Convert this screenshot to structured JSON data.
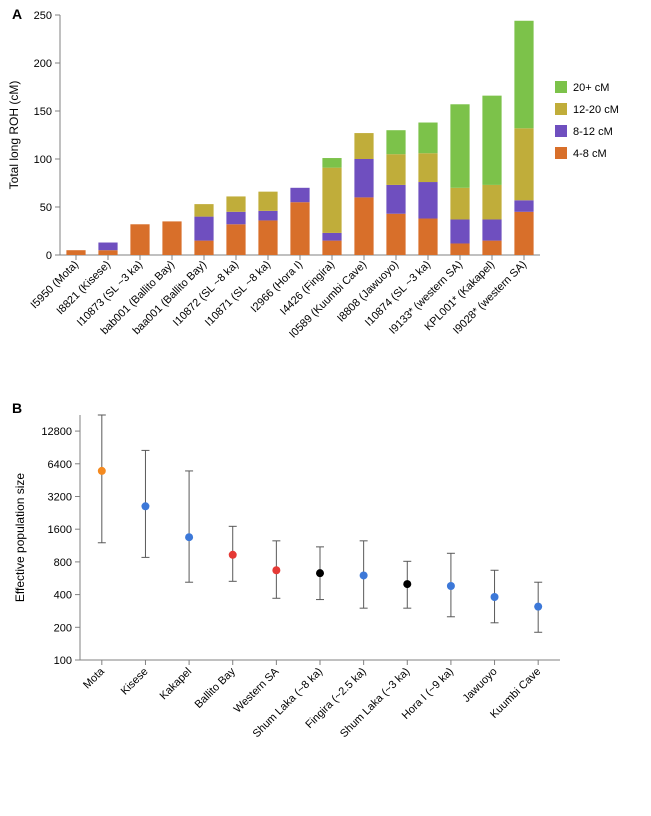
{
  "panelA": {
    "label": "A",
    "type": "bar",
    "ylabel": "Total long ROH (cM)",
    "label_fontsize": 12,
    "ylim": [
      0,
      250
    ],
    "ytick_step": 50,
    "categories": [
      "I5950 (Mota)",
      "I8821 (Kisese)",
      "I10873 (SL ~3 ka)",
      "bab001 (Ballito Bay)",
      "baa001 (Ballito Bay)",
      "I10872 (SL ~8 ka)",
      "I10871 (SL ~8 ka)",
      "I2966 (Hora I)",
      "I4426 (Fingira)",
      "I0589 (Kuumbi Cave)",
      "I8808 (Jawuoyo)",
      "I10874 (SL ~3 ka)",
      "I9133* (western SA)",
      "KPL001* (Kakapel)",
      "I9028* (western SA)"
    ],
    "series_order": [
      "4-8",
      "8-12",
      "12-20",
      "20+"
    ],
    "colors": {
      "4-8": "#d86f2a",
      "8-12": "#6f4fbf",
      "12-20": "#c0ad3a",
      "20+": "#7cc24a"
    },
    "legend": [
      {
        "label": "20+ cM",
        "key": "20+"
      },
      {
        "label": "12-20 cM",
        "key": "12-20"
      },
      {
        "label": "8-12 cM",
        "key": "8-12"
      },
      {
        "label": "4-8 cM",
        "key": "4-8"
      }
    ],
    "values": [
      {
        "4-8": 5,
        "8-12": 0,
        "12-20": 0,
        "20+": 0
      },
      {
        "4-8": 5,
        "8-12": 8,
        "12-20": 0,
        "20+": 0
      },
      {
        "4-8": 32,
        "8-12": 0,
        "12-20": 0,
        "20+": 0
      },
      {
        "4-8": 35,
        "8-12": 0,
        "12-20": 0,
        "20+": 0
      },
      {
        "4-8": 15,
        "8-12": 25,
        "12-20": 13,
        "20+": 0
      },
      {
        "4-8": 32,
        "8-12": 13,
        "12-20": 16,
        "20+": 0
      },
      {
        "4-8": 36,
        "8-12": 10,
        "12-20": 20,
        "20+": 0
      },
      {
        "4-8": 55,
        "8-12": 15,
        "12-20": 0,
        "20+": 0
      },
      {
        "4-8": 15,
        "8-12": 8,
        "12-20": 68,
        "20+": 10
      },
      {
        "4-8": 60,
        "8-12": 40,
        "12-20": 27,
        "20+": 0
      },
      {
        "4-8": 43,
        "8-12": 30,
        "12-20": 32,
        "20+": 25
      },
      {
        "4-8": 38,
        "8-12": 38,
        "12-20": 30,
        "20+": 32
      },
      {
        "4-8": 12,
        "8-12": 25,
        "12-20": 33,
        "20+": 87
      },
      {
        "4-8": 15,
        "8-12": 22,
        "12-20": 36,
        "20+": 93
      },
      {
        "4-8": 45,
        "8-12": 12,
        "12-20": 75,
        "20+": 112
      }
    ],
    "background_color": "#ffffff",
    "axis_color": "#808080",
    "tick_color": "#808080",
    "bar_width": 0.6
  },
  "panelB": {
    "label": "B",
    "type": "scatter",
    "ylabel": "Effective population size",
    "label_fontsize": 12,
    "yscale": "log2",
    "ylim": [
      100,
      18000
    ],
    "yticks": [
      100,
      200,
      400,
      800,
      1600,
      3200,
      6400,
      12800
    ],
    "categories": [
      "Mota",
      "Kisese",
      "Kakapel",
      "Ballito Bay",
      "Western SA",
      "Shum Laka (~8 ka)",
      "Fingira (~2.5 ka)",
      "Shum Laka (~3 ka)",
      "Hora I (~9 ka)",
      "Jawuoyo",
      "Kuumbi Cave"
    ],
    "points": [
      {
        "y": 5500,
        "lo": 1200,
        "hi": 18000,
        "color": "#f58a1f"
      },
      {
        "y": 2600,
        "lo": 880,
        "hi": 8500,
        "color": "#3c78d8"
      },
      {
        "y": 1350,
        "lo": 520,
        "hi": 5500,
        "color": "#3c78d8"
      },
      {
        "y": 930,
        "lo": 530,
        "hi": 1700,
        "color": "#e53935"
      },
      {
        "y": 670,
        "lo": 370,
        "hi": 1250,
        "color": "#e53935"
      },
      {
        "y": 630,
        "lo": 360,
        "hi": 1100,
        "color": "#000000"
      },
      {
        "y": 600,
        "lo": 300,
        "hi": 1250,
        "color": "#3c78d8"
      },
      {
        "y": 500,
        "lo": 300,
        "hi": 810,
        "color": "#000000"
      },
      {
        "y": 480,
        "lo": 250,
        "hi": 960,
        "color": "#3c78d8"
      },
      {
        "y": 380,
        "lo": 220,
        "hi": 670,
        "color": "#3c78d8"
      },
      {
        "y": 310,
        "lo": 180,
        "hi": 520,
        "color": "#3c78d8"
      }
    ],
    "background_color": "#ffffff",
    "axis_color": "#808080",
    "error_bar_color": "#595959",
    "marker_size": 4
  }
}
